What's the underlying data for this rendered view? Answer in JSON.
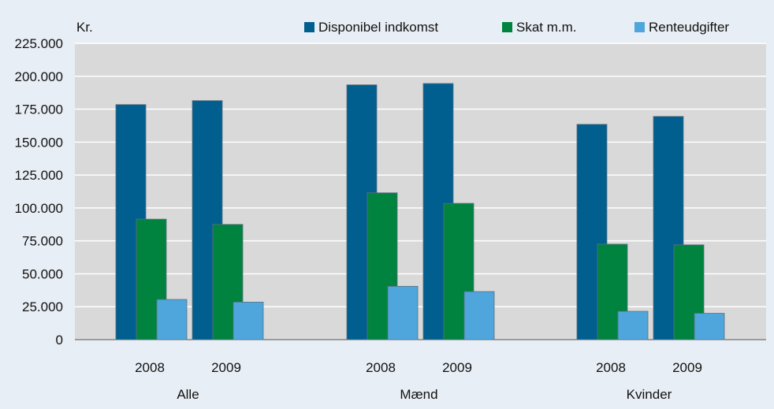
{
  "chart_data": {
    "type": "bar",
    "ylabel": "Kr.",
    "ylim": [
      0,
      225000
    ],
    "yticks": [
      0,
      25000,
      50000,
      75000,
      100000,
      125000,
      150000,
      175000,
      200000,
      225000
    ],
    "ytick_labels": [
      "0",
      "25.000",
      "50.000",
      "75.000",
      "100.000",
      "125.000",
      "150.000",
      "175.000",
      "200.000",
      "225.000"
    ],
    "grid": true,
    "legend_position": "top",
    "groups": [
      {
        "label": "Alle",
        "years": [
          "2008",
          "2009"
        ]
      },
      {
        "label": "Mænd",
        "years": [
          "2008",
          "2009"
        ]
      },
      {
        "label": "Kvinder",
        "years": [
          "2008",
          "2009"
        ]
      }
    ],
    "series": [
      {
        "name": "Disponibel indkomst",
        "color": "#005f8f",
        "values": [
          [
            178500,
            181500
          ],
          [
            193500,
            194500
          ],
          [
            163500,
            169500
          ]
        ]
      },
      {
        "name": "Skat m.m.",
        "color": "#00833f",
        "values": [
          [
            91500,
            87500
          ],
          [
            111500,
            103500
          ],
          [
            72500,
            72000
          ]
        ]
      },
      {
        "name": "Renteudgifter",
        "color": "#4ea6dc",
        "values": [
          [
            30500,
            28500
          ],
          [
            40500,
            36500
          ],
          [
            21500,
            20000
          ]
        ]
      }
    ]
  }
}
